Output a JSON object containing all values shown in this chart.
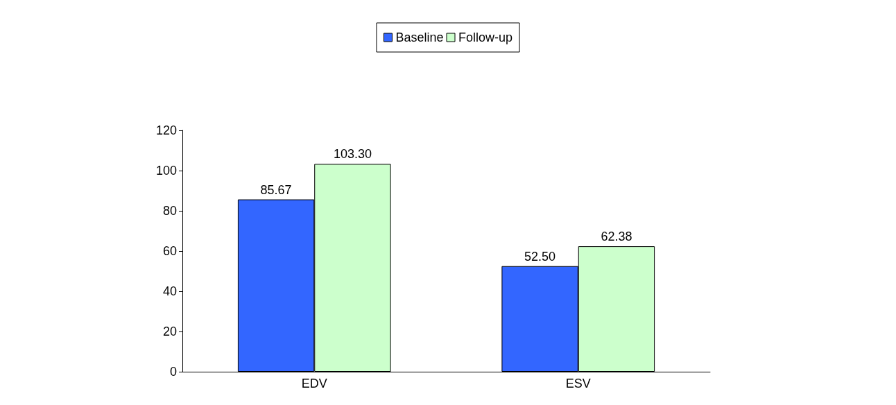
{
  "chart_data": {
    "type": "bar",
    "categories": [
      "EDV",
      "ESV"
    ],
    "series": [
      {
        "name": "Baseline",
        "color": "#3366ff",
        "values": [
          85.67,
          52.5
        ],
        "value_labels": [
          "85.67",
          "52.50"
        ]
      },
      {
        "name": "Follow-up",
        "color": "#ccffcc",
        "values": [
          103.3,
          62.38
        ],
        "value_labels": [
          "103.30",
          "62.38"
        ]
      }
    ],
    "ylim": [
      0,
      120
    ],
    "yticks": [
      0,
      20,
      40,
      60,
      80,
      100,
      120
    ],
    "grid": false,
    "legend": "top"
  }
}
